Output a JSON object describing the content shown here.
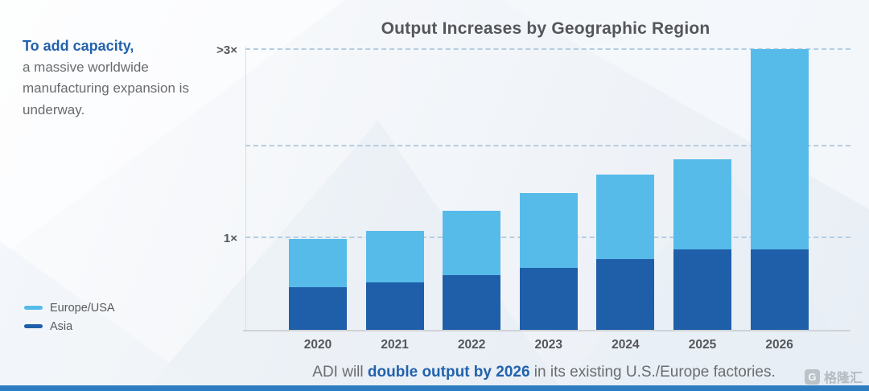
{
  "left_panel": {
    "headline": "To add capacity,",
    "body": "a massive worldwide manufacturing expansion is underway."
  },
  "legend": [
    {
      "label": "Europe/USA",
      "color": "#57bbea"
    },
    {
      "label": "Asia",
      "color": "#1f5fa9"
    }
  ],
  "chart_data": {
    "type": "bar",
    "stacked": true,
    "title": "Output Increases by Geographic Region",
    "categories": [
      "2020",
      "2021",
      "2022",
      "2023",
      "2024",
      "2025",
      "2026"
    ],
    "series": [
      {
        "name": "Asia",
        "color": "#1f5fa9",
        "values": [
          0.47,
          0.52,
          0.6,
          0.68,
          0.78,
          0.88,
          0.88
        ]
      },
      {
        "name": "Europe/USA",
        "color": "#57bbea",
        "values": [
          0.53,
          0.56,
          0.7,
          0.81,
          0.91,
          0.98,
          2.18
        ]
      }
    ],
    "y_ticks": [
      {
        "value": 3.05,
        "label": ">3×"
      },
      {
        "value": 1,
        "label": "1×"
      }
    ],
    "gridline_values": [
      1,
      2,
      3.05
    ],
    "ylim": [
      0,
      3.1
    ],
    "legend_position": "bottom-left",
    "grid": "dashed-horizontal"
  },
  "caption": {
    "prefix": "ADI will ",
    "highlight": "double output by 2026",
    "suffix": " in its existing U.S./Europe factories."
  },
  "watermark": {
    "icon_letter": "G",
    "text": "格隆汇"
  },
  "accent_colors": {
    "highlight_blue": "#2262ad",
    "bar_light_blue": "#57bbea",
    "bar_dark_blue": "#1f5fa9",
    "bottom_strip_blue": "#2f7dc1",
    "title_gray": "#54565a"
  }
}
